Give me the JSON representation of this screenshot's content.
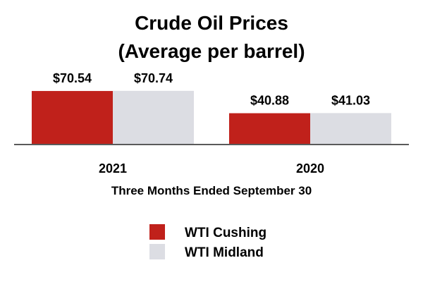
{
  "chart_data": {
    "type": "bar",
    "title": "Crude Oil Prices",
    "subtitle": "(Average per barrel)",
    "categories": [
      "2021",
      "2020"
    ],
    "xlabel": "Three Months Ended September 30",
    "ylabel": "",
    "ylim": [
      0,
      80
    ],
    "grid": false,
    "legend_position": "bottom-center",
    "series": [
      {
        "name": "WTI Cushing",
        "color": "#C0211B",
        "values": [
          70.54,
          40.88
        ],
        "labels": [
          "$70.54",
          "$40.88"
        ]
      },
      {
        "name": "WTI Midland",
        "color": "#DCDDE3",
        "values": [
          70.74,
          41.03
        ],
        "labels": [
          "$70.74",
          "$41.03"
        ]
      }
    ]
  }
}
